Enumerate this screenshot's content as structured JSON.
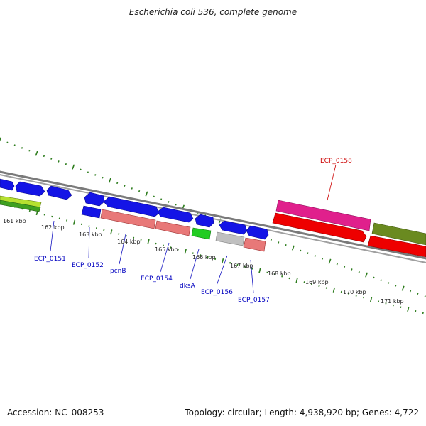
{
  "title": "Escherichia coli 536, complete genome",
  "footer": {
    "accession": "Accession: NC_008253",
    "summary": "Topology: circular; Length: 4,938,920 bp; Genes: 4,722"
  },
  "colors": {
    "tick": "#2e7d1e",
    "backbone": "#888888",
    "label_blue": "#0000c0",
    "label_red": "#cc0000",
    "blue_gene": "#1010e0",
    "salmon_gene": "#e87878",
    "pink_gene": "#e0208c",
    "red_gene": "#ee0000",
    "olive_gene": "#6a8a20",
    "green_gene": "#22cc22",
    "grey_gene": "#c0c0c0",
    "lime_gene": "#b6e030"
  },
  "kbp_labels": [
    "161 kbp",
    "162 kbp",
    "163 kbp",
    "164 kbp",
    "165 kbp",
    "166 kbp",
    "167 kbp",
    "168 kbp",
    "169 kbp",
    "170 kbp",
    "171 kbp"
  ],
  "gene_labels": [
    "ECP_0151",
    "ECP_0152",
    "pcnB",
    "ECP_0154",
    "dksA",
    "ECP_0156",
    "ECP_0157",
    "ECP_0158"
  ]
}
